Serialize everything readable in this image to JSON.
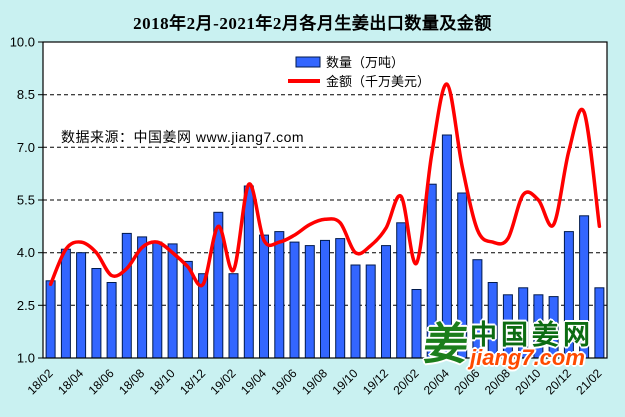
{
  "title": "2018年2月-2021年2月各月生姜出口数量及金额",
  "watermark": "数据来源：中国姜网 www.jiang7.com",
  "legend": {
    "bars_label": "数量（万吨）",
    "line_label": "金额（千万美元）"
  },
  "logo": {
    "mark": "姜",
    "name": "中国姜网",
    "site": "jiang7.com"
  },
  "colors": {
    "background": "#c9f1f1",
    "plot_background": "#ffffff",
    "bar_fill": "#3366ff",
    "bar_stroke": "#001a4d",
    "line": "#ff0000",
    "grid": "#000000",
    "text": "#000000",
    "logo_green": "#0c6c12",
    "logo_orange": "#ff4a00"
  },
  "chart_data": {
    "type": "bar",
    "title": "2018年2月-2021年2月各月生姜出口数量及金额",
    "categories": [
      "18/02",
      "18/03",
      "18/04",
      "18/05",
      "18/06",
      "18/07",
      "18/08",
      "18/09",
      "18/10",
      "18/11",
      "18/12",
      "19/01",
      "19/02",
      "19/03",
      "19/04",
      "19/05",
      "19/06",
      "19/07",
      "19/08",
      "19/09",
      "19/10",
      "19/11",
      "19/12",
      "20/01",
      "20/02",
      "20/03",
      "20/04",
      "20/05",
      "20/06",
      "20/07",
      "20/08",
      "20/09",
      "20/10",
      "20/11",
      "20/12",
      "21/01",
      "21/02"
    ],
    "x_tick_labels": [
      "18/02",
      "18/04",
      "18/06",
      "18/08",
      "18/10",
      "18/12",
      "19/02",
      "19/04",
      "19/06",
      "19/08",
      "19/10",
      "19/12",
      "20/02",
      "20/04",
      "20/06",
      "20/08",
      "20/10",
      "20/12",
      "21/02"
    ],
    "series": [
      {
        "name": "数量（万吨）",
        "type": "bar",
        "values": [
          3.2,
          4.1,
          4.0,
          3.55,
          3.15,
          4.55,
          4.45,
          4.3,
          4.25,
          3.75,
          3.4,
          5.15,
          3.4,
          5.9,
          4.5,
          4.6,
          4.3,
          4.2,
          4.35,
          4.4,
          3.65,
          3.65,
          4.2,
          4.85,
          2.95,
          5.95,
          7.35,
          5.7,
          3.8,
          3.15,
          2.8,
          3.0,
          2.8,
          2.75,
          4.6,
          5.05,
          3.0
        ]
      },
      {
        "name": "金额（千万美元）",
        "type": "line",
        "values": [
          3.1,
          4.1,
          4.3,
          4.0,
          3.35,
          3.55,
          4.15,
          4.3,
          4.0,
          3.6,
          3.1,
          4.75,
          3.5,
          5.95,
          4.35,
          4.3,
          4.5,
          4.8,
          4.95,
          4.85,
          4.0,
          4.2,
          4.7,
          5.6,
          3.7,
          6.8,
          8.8,
          6.45,
          4.65,
          4.3,
          4.4,
          5.65,
          5.5,
          4.8,
          6.9,
          8.0,
          4.75
        ]
      }
    ],
    "xlabel": "",
    "ylabel": "",
    "ylim": [
      1.0,
      10.0
    ],
    "y_ticks": [
      1.0,
      2.5,
      4.0,
      5.5,
      7.0,
      8.5,
      10.0
    ],
    "grid": true,
    "legend_position": "top-center"
  }
}
